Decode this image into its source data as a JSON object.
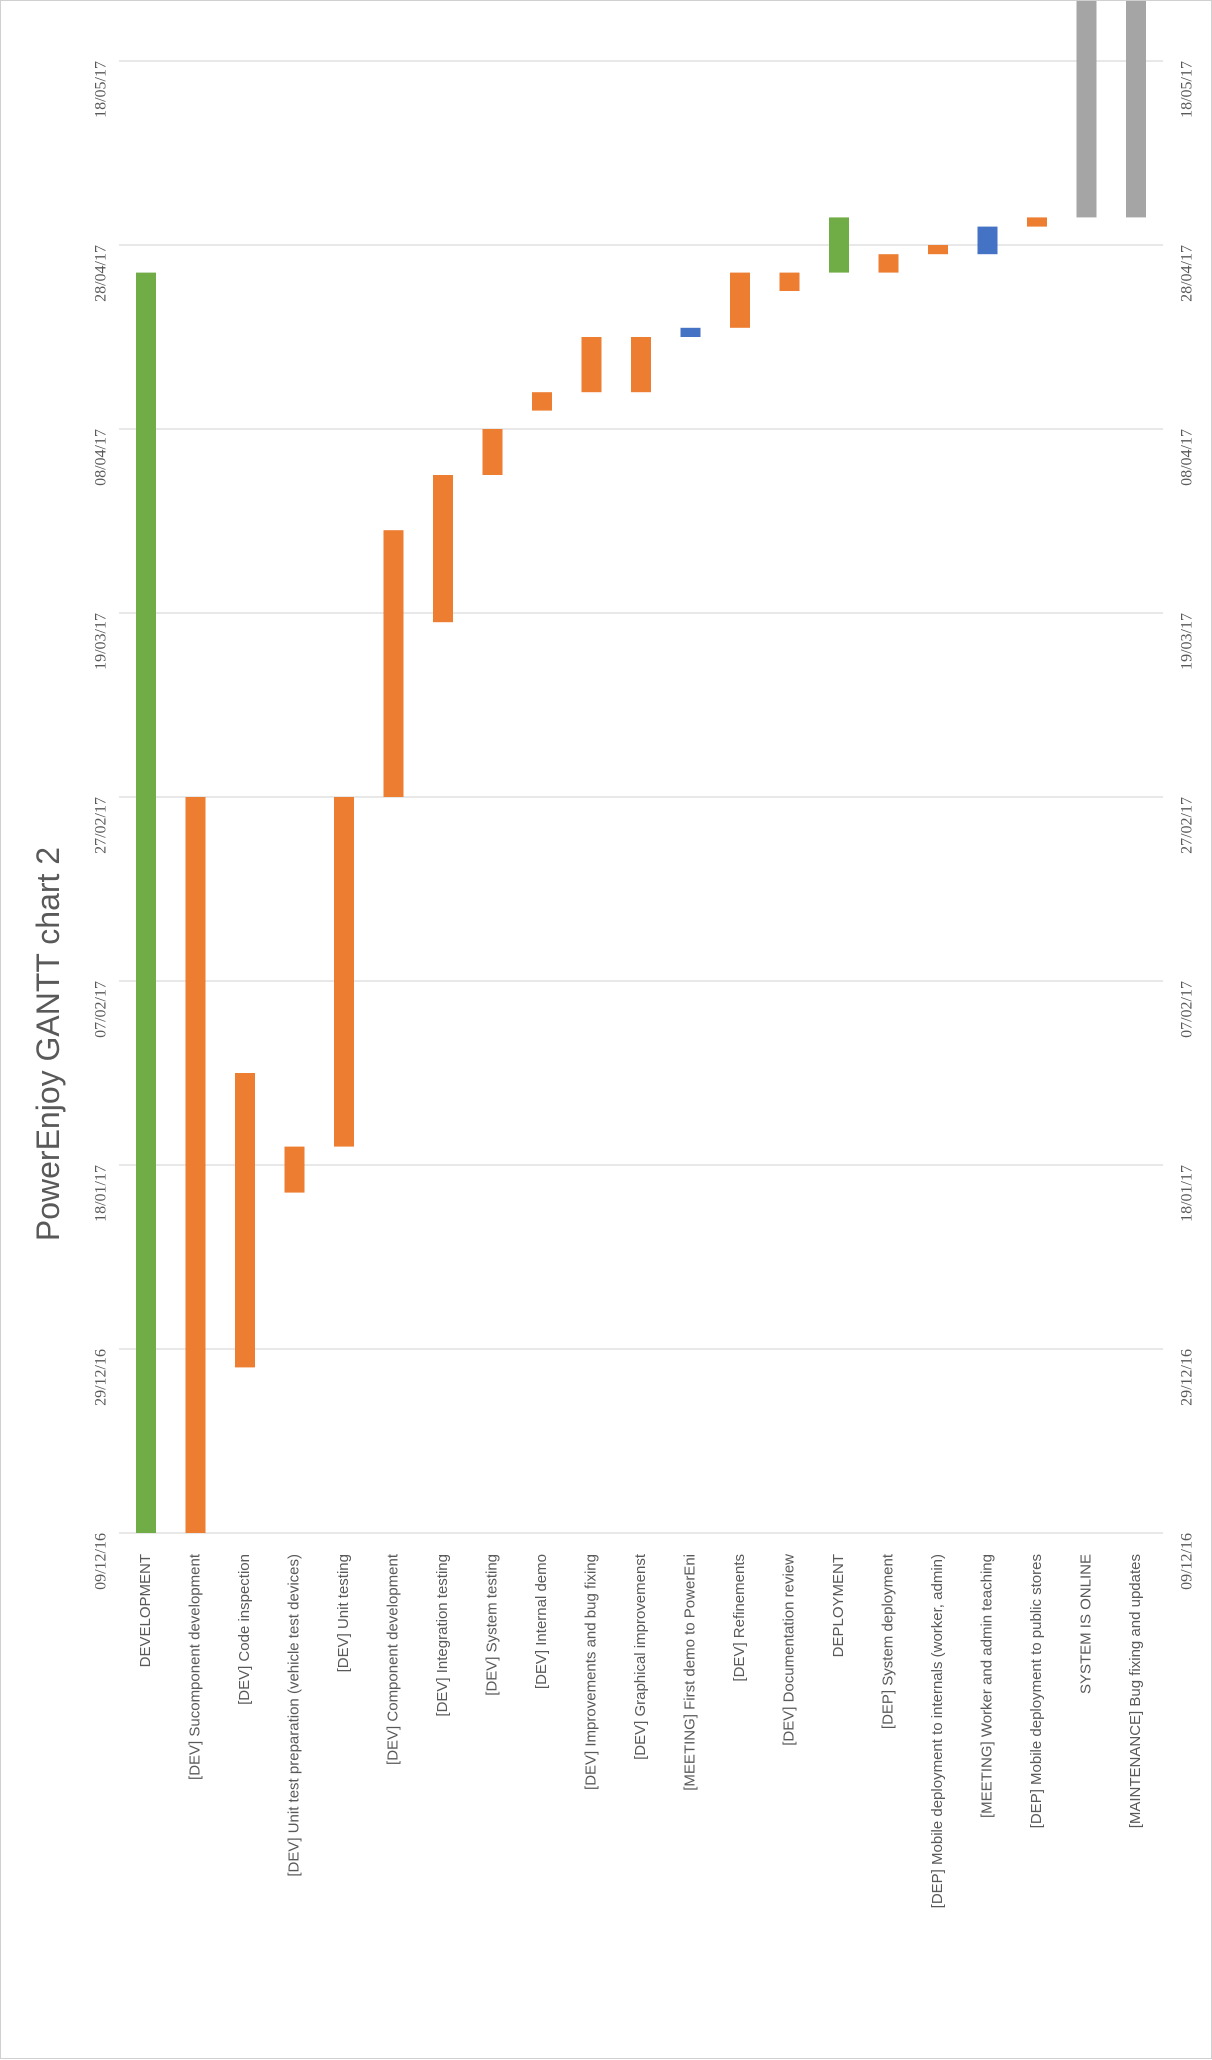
{
  "colors": {
    "phase": "#70ad47",
    "dev": "#ed7d31",
    "meeting": "#4472c4",
    "maintenance": "#a5a5a5",
    "grid": "#d9d9d9",
    "axis_text": "#595959"
  },
  "chart_data": {
    "type": "bar",
    "orientation": "rotated-gantt",
    "title": "PowerEnjoy GANTT chart 2",
    "xlabel": "",
    "ylabel": "",
    "date_axis": {
      "ticks": [
        "09/12/16",
        "29/12/16",
        "18/01/17",
        "07/02/17",
        "27/02/17",
        "19/03/17",
        "08/04/17",
        "28/04/17",
        "18/05/17"
      ],
      "range": [
        "2016-12-09",
        "2017-05-26"
      ]
    },
    "grid": true,
    "legend": "none",
    "tasks": [
      {
        "label": "DEVELOPMENT",
        "start": "2016-12-09",
        "end": "2017-04-25",
        "kind": "phase"
      },
      {
        "label": "[DEV] Sucomponent development",
        "start": "2016-12-09",
        "end": "2017-02-27",
        "kind": "dev"
      },
      {
        "label": "[DEV] Code inspection",
        "start": "2016-12-27",
        "end": "2017-01-28",
        "kind": "dev"
      },
      {
        "label": "[DEV] Unit test preparation (vehicle test devices)",
        "start": "2017-01-15",
        "end": "2017-01-20",
        "kind": "dev"
      },
      {
        "label": "[DEV] Unit testing",
        "start": "2017-01-20",
        "end": "2017-02-27",
        "kind": "dev"
      },
      {
        "label": "[DEV] Component development",
        "start": "2017-02-27",
        "end": "2017-03-28",
        "kind": "dev"
      },
      {
        "label": "[DEV] Integration testing",
        "start": "2017-03-18",
        "end": "2017-04-03",
        "kind": "dev"
      },
      {
        "label": "[DEV] System testing",
        "start": "2017-04-03",
        "end": "2017-04-08",
        "kind": "dev"
      },
      {
        "label": "[DEV] Internal demo",
        "start": "2017-04-10",
        "end": "2017-04-12",
        "kind": "dev"
      },
      {
        "label": "[DEV] Improvements and bug fixing",
        "start": "2017-04-12",
        "end": "2017-04-18",
        "kind": "dev"
      },
      {
        "label": "[DEV] Graphical improvemenst",
        "start": "2017-04-12",
        "end": "2017-04-18",
        "kind": "dev"
      },
      {
        "label": "[MEETING] First demo to PowerEni",
        "start": "2017-04-18",
        "end": "2017-04-19",
        "kind": "meeting"
      },
      {
        "label": "[DEV] Refinements",
        "start": "2017-04-19",
        "end": "2017-04-25",
        "kind": "dev"
      },
      {
        "label": "[DEV] Documentation review",
        "start": "2017-04-23",
        "end": "2017-04-25",
        "kind": "dev"
      },
      {
        "label": "DEPLOYMENT",
        "start": "2017-04-25",
        "end": "2017-05-01",
        "kind": "phase"
      },
      {
        "label": "[DEP] System deployment",
        "start": "2017-04-25",
        "end": "2017-04-27",
        "kind": "dev"
      },
      {
        "label": "[DEP] Mobile deployment to internals (worker, admin)",
        "start": "2017-04-27",
        "end": "2017-04-28",
        "kind": "dev"
      },
      {
        "label": "[MEETING] Worker and admin teaching",
        "start": "2017-04-27",
        "end": "2017-04-30",
        "kind": "meeting"
      },
      {
        "label": "[DEP] Mobile deployment to public stores",
        "start": "2017-04-30",
        "end": "2017-05-01",
        "kind": "dev"
      },
      {
        "label": "SYSTEM IS ONLINE",
        "start": "2017-05-01",
        "end": "2017-05-26",
        "kind": "maintenance"
      },
      {
        "label": "[MAINTENANCE] Bug fixing and updates",
        "start": "2017-05-01",
        "end": "2017-05-26",
        "kind": "maintenance"
      }
    ]
  }
}
